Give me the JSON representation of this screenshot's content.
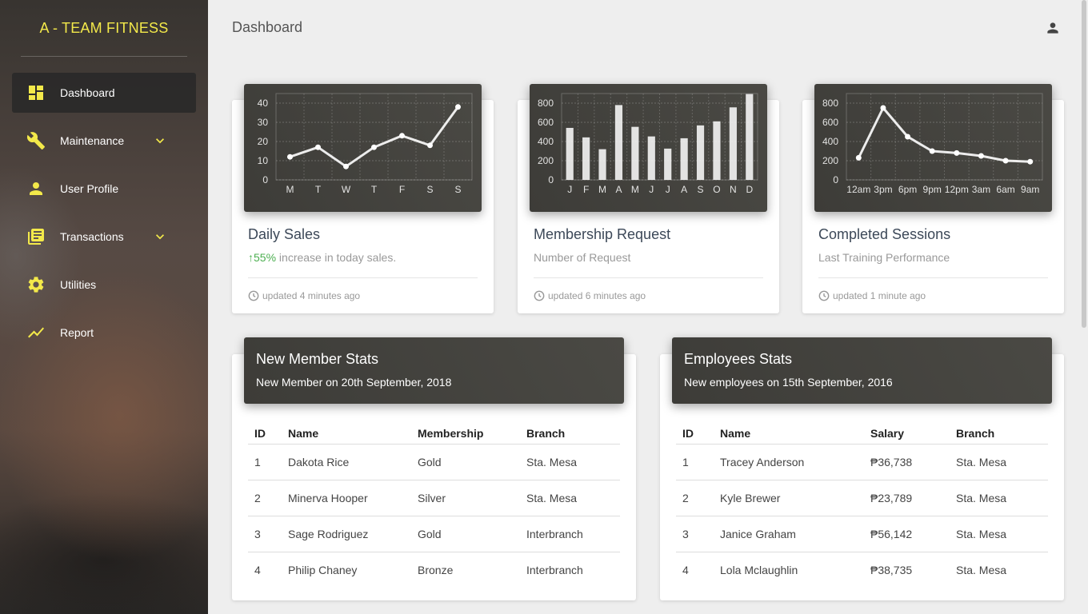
{
  "app": {
    "brand": "A - TEAM FITNESS"
  },
  "sidebar": {
    "items": [
      {
        "label": "Dashboard",
        "icon": "dashboard-icon",
        "active": true
      },
      {
        "label": "Maintenance",
        "icon": "wrench-icon",
        "expandable": true
      },
      {
        "label": "User Profile",
        "icon": "person-icon"
      },
      {
        "label": "Transactions",
        "icon": "library-books-icon",
        "expandable": true
      },
      {
        "label": "Utilities",
        "icon": "gear-icon"
      },
      {
        "label": "Report",
        "icon": "trending-icon"
      }
    ]
  },
  "header": {
    "title": "Dashboard",
    "user_icon": "account-icon"
  },
  "colors": {
    "accent": "#f3e94a",
    "chart_bg": "#42413c",
    "success": "#4caf50"
  },
  "cards": [
    {
      "title": "Daily Sales",
      "sub_pct": "55%",
      "sub_text": " increase in today sales.",
      "updated": "updated 4 minutes ago"
    },
    {
      "title": "Membership Request",
      "sub_text": "Number of Request",
      "updated": "updated 6 minutes ago"
    },
    {
      "title": "Completed Sessions",
      "sub_text": "Last Training Performance",
      "updated": "updated 1 minute ago"
    }
  ],
  "chart_data": [
    {
      "type": "line",
      "categories": [
        "M",
        "T",
        "W",
        "T",
        "F",
        "S",
        "S"
      ],
      "values": [
        12,
        17,
        7,
        17,
        23,
        18,
        38
      ],
      "yticks": [
        0,
        10,
        20,
        30,
        40
      ],
      "ylim": [
        0,
        45
      ],
      "grid": true
    },
    {
      "type": "bar",
      "categories": [
        "J",
        "F",
        "M",
        "A",
        "M",
        "J",
        "J",
        "A",
        "S",
        "O",
        "N",
        "D"
      ],
      "values": [
        542,
        443,
        320,
        780,
        553,
        453,
        326,
        434,
        568,
        610,
        756,
        895
      ],
      "yticks": [
        0,
        200,
        400,
        600,
        800
      ],
      "ylim": [
        0,
        900
      ],
      "grid": true
    },
    {
      "type": "line",
      "categories": [
        "12am",
        "3pm",
        "6pm",
        "9pm",
        "12pm",
        "3am",
        "6am",
        "9am"
      ],
      "values": [
        230,
        750,
        450,
        300,
        280,
        250,
        200,
        190
      ],
      "yticks": [
        0,
        200,
        400,
        600,
        800
      ],
      "ylim": [
        0,
        900
      ],
      "grid": true
    }
  ],
  "tables": {
    "members": {
      "title": "New Member Stats",
      "subtitle": "New Member on 20th September, 2018",
      "columns": [
        "ID",
        "Name",
        "Membership",
        "Branch"
      ],
      "rows": [
        [
          "1",
          "Dakota Rice",
          "Gold",
          "Sta. Mesa"
        ],
        [
          "2",
          "Minerva Hooper",
          "Silver",
          "Sta. Mesa"
        ],
        [
          "3",
          "Sage Rodriguez",
          "Gold",
          "Interbranch"
        ],
        [
          "4",
          "Philip Chaney",
          "Bronze",
          "Interbranch"
        ]
      ]
    },
    "employees": {
      "title": "Employees Stats",
      "subtitle": "New employees on 15th September, 2016",
      "columns": [
        "ID",
        "Name",
        "Salary",
        "Branch"
      ],
      "rows": [
        [
          "1",
          "Tracey Anderson",
          "₱36,738",
          "Sta. Mesa"
        ],
        [
          "2",
          "Kyle Brewer",
          "₱23,789",
          "Sta. Mesa"
        ],
        [
          "3",
          "Janice Graham",
          "₱56,142",
          "Sta. Mesa"
        ],
        [
          "4",
          "Lola Mclaughlin",
          "₱38,735",
          "Sta. Mesa"
        ]
      ]
    }
  }
}
